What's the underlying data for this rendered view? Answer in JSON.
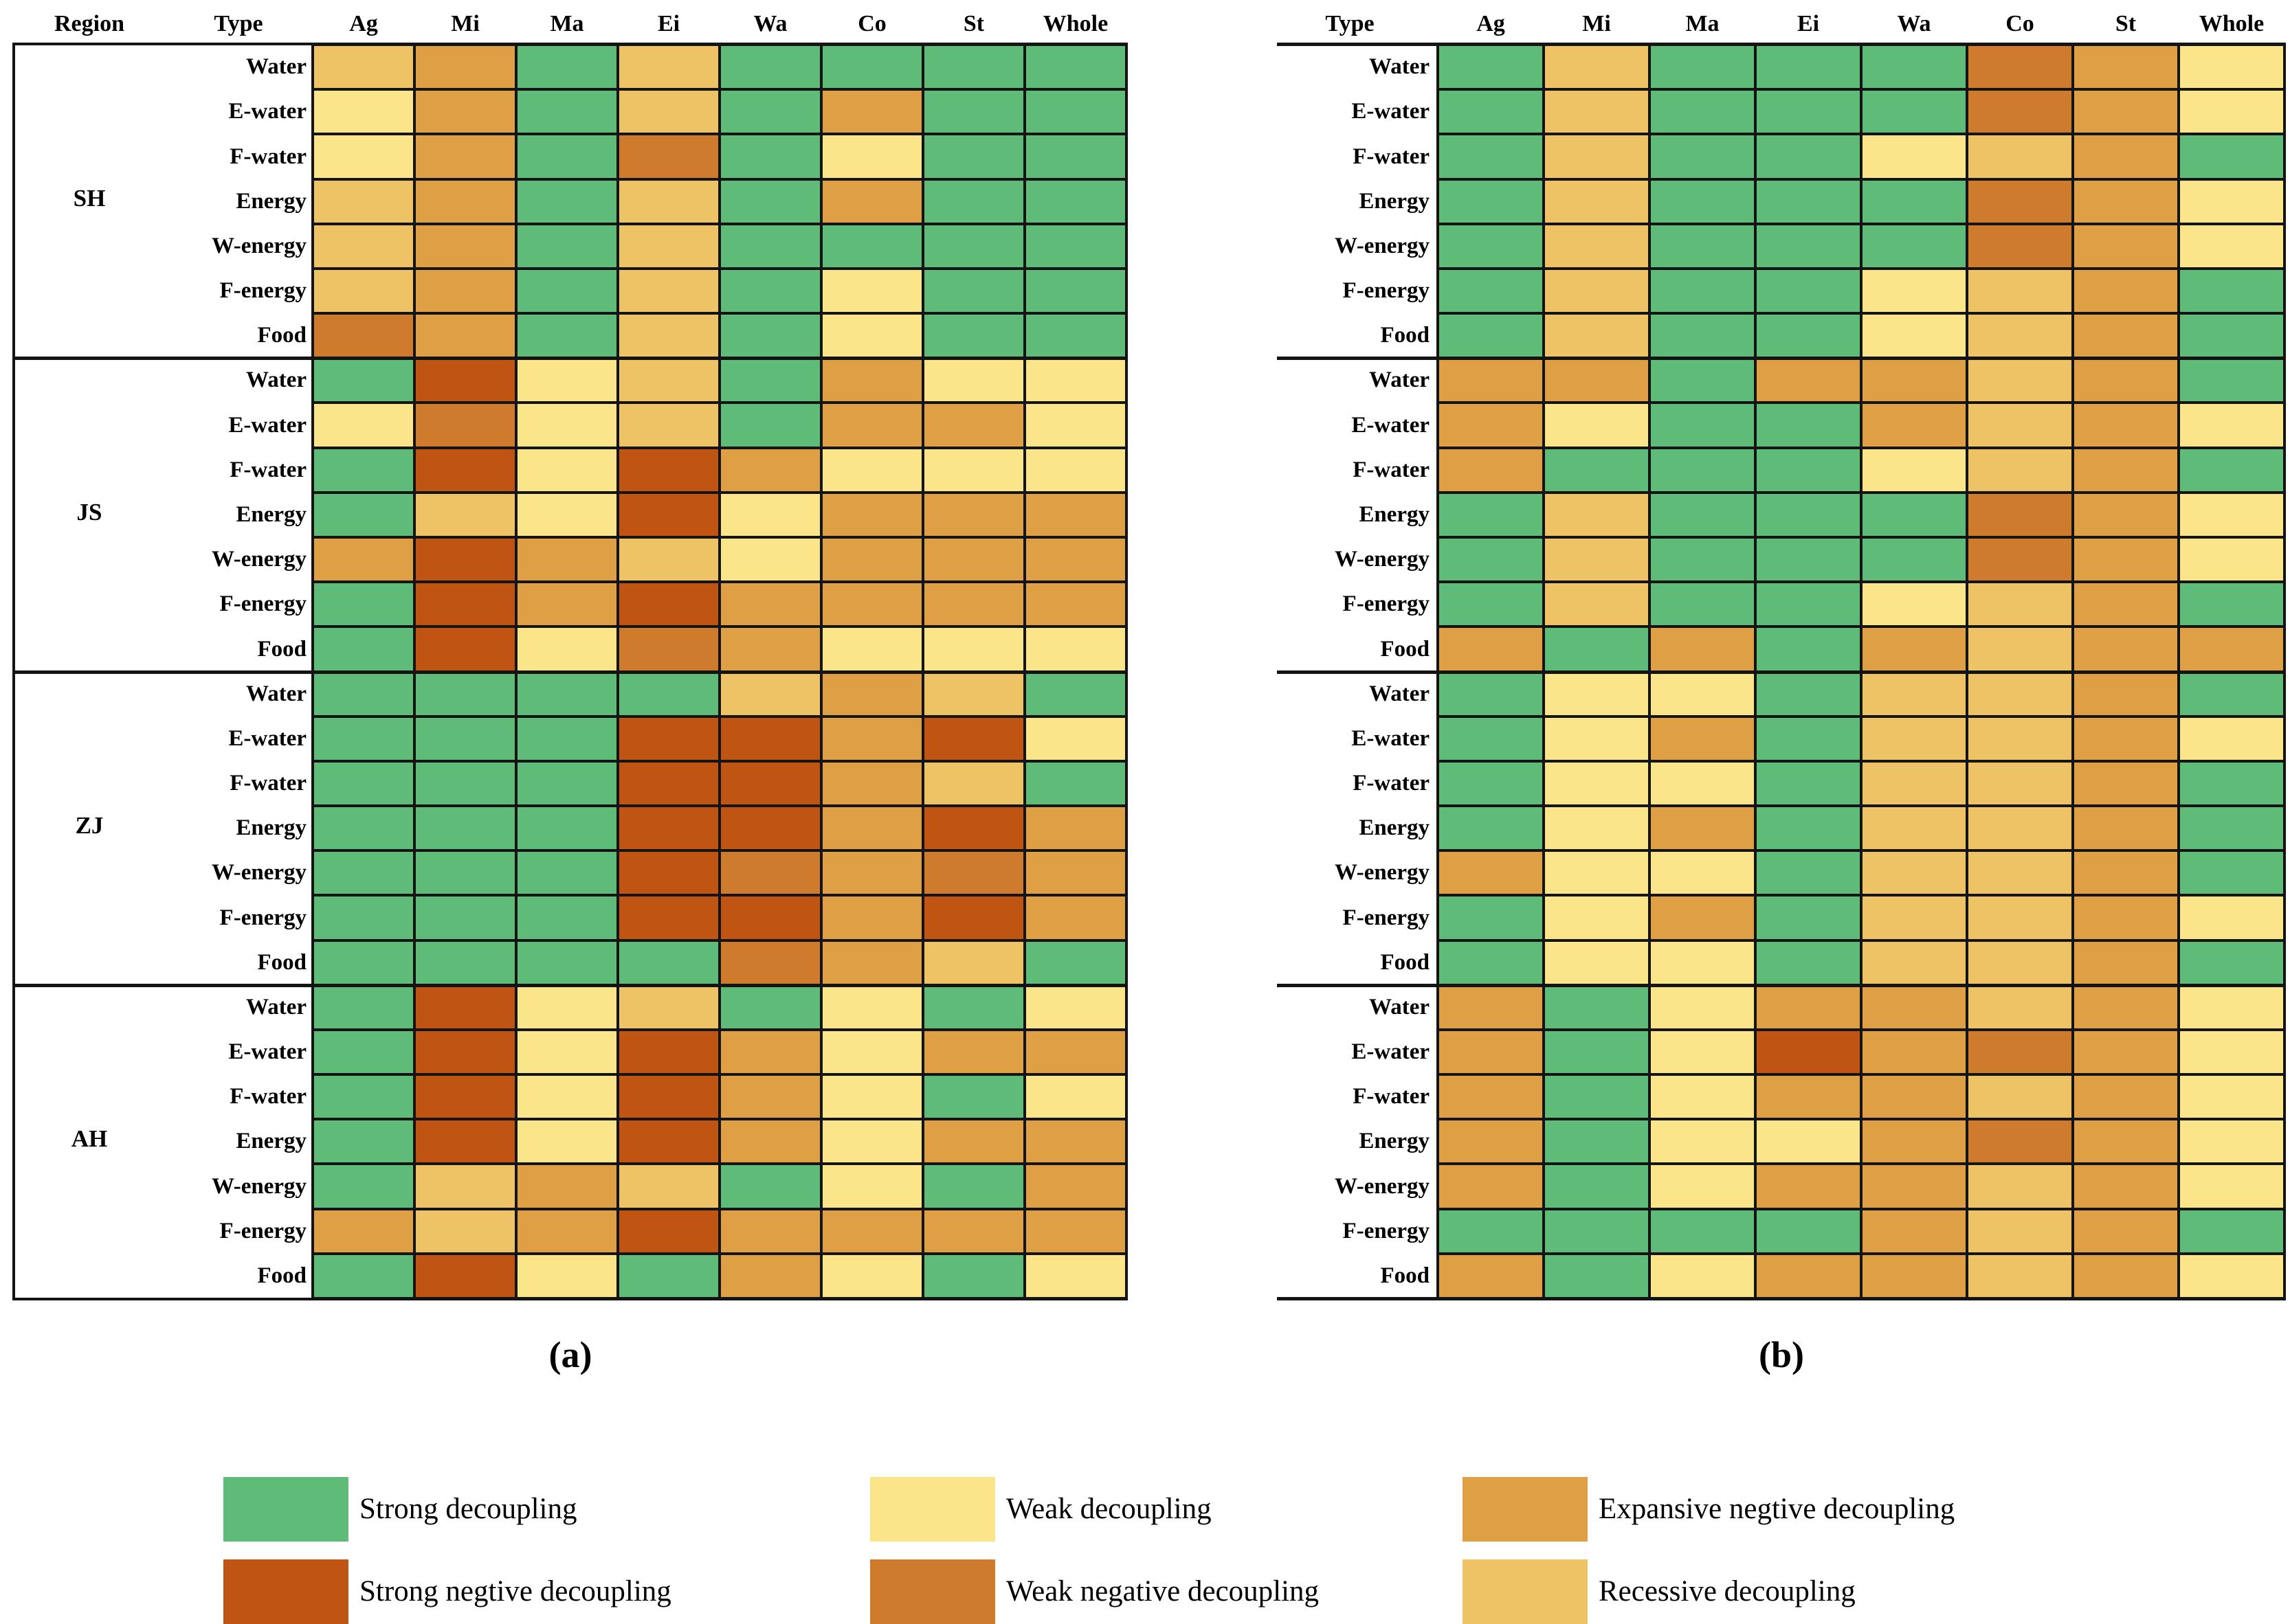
{
  "captions": {
    "panel_a": "(a)",
    "panel_b": "(b)"
  },
  "colors": {
    "G": "#5FBC78",
    "W": "#FBE58A",
    "E": "#DF9F45",
    "S": "#C05412",
    "N": "#CE7B2D",
    "R": "#EEC366",
    "border": "#141414",
    "background": "#FFFFFF"
  },
  "legend": {
    "rows": [
      [
        {
          "label": "Strong decoupling",
          "code": "G"
        },
        {
          "label": "Weak decoupling",
          "code": "W"
        },
        {
          "label": "Expansive negtive decoupling",
          "code": "E"
        }
      ],
      [
        {
          "label": "Strong negtive decoupling",
          "code": "S"
        },
        {
          "label": "Weak negative decoupling",
          "code": "N"
        },
        {
          "label": "Recessive decoupling",
          "code": "R"
        }
      ]
    ]
  },
  "chart_data": {
    "type": "heatmap",
    "value_labels": {
      "G": "Strong decoupling",
      "W": "Weak decoupling",
      "E": "Expansive negtive decoupling",
      "S": "Strong negtive decoupling",
      "N": "Weak negative decoupling",
      "R": "Recessive decoupling"
    },
    "row_types": [
      "Water",
      "E-water",
      "F-water",
      "Energy",
      "W-energy",
      "F-energy",
      "Food"
    ],
    "panels": [
      {
        "label": "(a)",
        "header": [
          "Region",
          "Type",
          "Ag",
          "Mi",
          "Ma",
          "Ei",
          "Wa",
          "Co",
          "St",
          "Whole"
        ],
        "show_region_column": true,
        "regions": [
          {
            "name": "SH",
            "cells": [
              "REGRGGGG",
              "WEGRGEGG",
              "WEGNGWGG",
              "REGRGEGG",
              "REGRGGGG",
              "REGRGWGG",
              "NEGRGWGG"
            ]
          },
          {
            "name": "JS",
            "cells": [
              "GSWRGEWW",
              "WNWRGEEW",
              "GSWSEWWW",
              "GRWSWEEE",
              "ESERWEEE",
              "GSESEEEE",
              "GSWNEWWW"
            ]
          },
          {
            "name": "ZJ",
            "cells": [
              "GGGGRERG",
              "GGGSSESW",
              "GGGSSERG",
              "GGGSSESE",
              "GGGSNENE",
              "GGGSSESE",
              "GGGGNERG"
            ]
          },
          {
            "name": "AH",
            "cells": [
              "GSWRGWGW",
              "GSWSEWEE",
              "GSWSEWGW",
              "GSWSEWEE",
              "GRERGWGE",
              "ERESEEEE",
              "GSWGEWGW"
            ]
          }
        ]
      },
      {
        "label": "(b)",
        "header": [
          "Type",
          "Ag",
          "Mi",
          "Ma",
          "Ei",
          "Wa",
          "Co",
          "St",
          "Whole"
        ],
        "show_region_column": false,
        "regions": [
          {
            "name": "SH",
            "cells": [
              "GRGGGNEW",
              "GRGGGNEW",
              "GRGGWREG",
              "GRGGGNEW",
              "GRGGGNEW",
              "GRGGWREG",
              "GRGGWREG"
            ]
          },
          {
            "name": "JS",
            "cells": [
              "EEGEEREG",
              "EWGGEREW",
              "EGGGWREG",
              "GRGGGNEW",
              "GRGGGNEW",
              "GRGGWREG",
              "EGEGEREE"
            ]
          },
          {
            "name": "ZJ",
            "cells": [
              "GWWGRREG",
              "GWEGRREW",
              "GWWGRREG",
              "GWEGRREG",
              "EWWGRREG",
              "GWEGRREW",
              "GWWGRREG"
            ]
          },
          {
            "name": "AH",
            "cells": [
              "EGWEEREW",
              "EGWSENEW",
              "EGWEEREW",
              "EGWWENEW",
              "EGWEEREW",
              "GGGGEREG",
              "EGWEEREW"
            ]
          }
        ]
      }
    ]
  }
}
